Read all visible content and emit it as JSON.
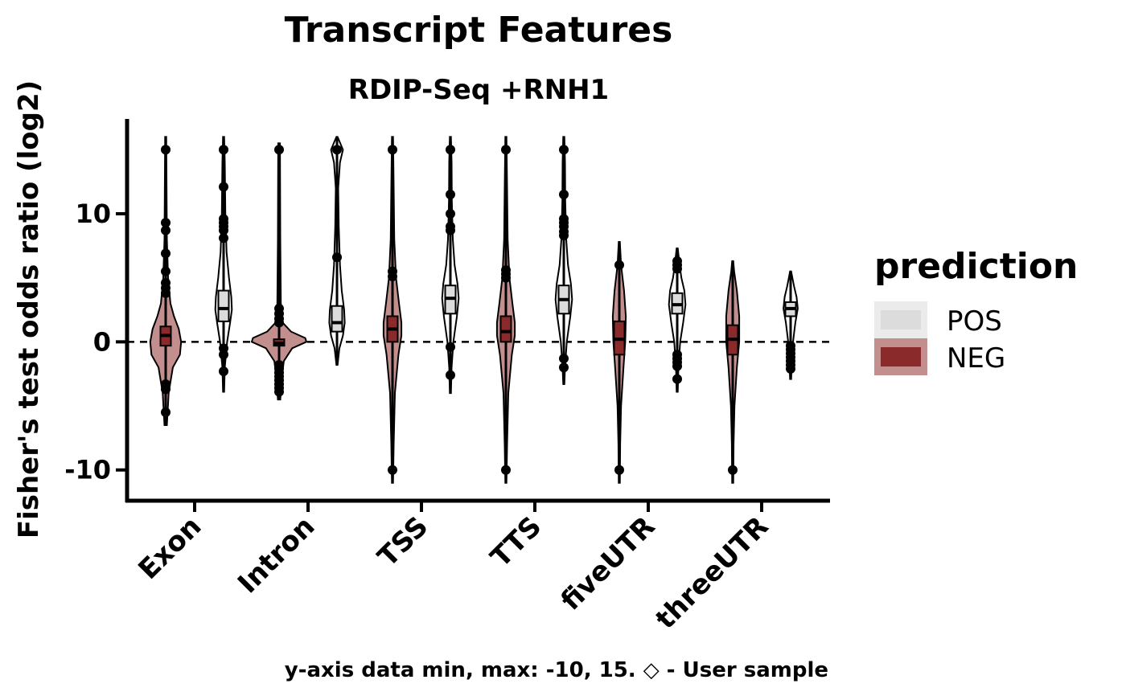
{
  "chart_data": {
    "type": "violin",
    "title": "Transcript Features",
    "subtitle": "RDIP-Seq +RNH1",
    "xlabel": "",
    "ylabel": "Fisher's test odds ratio (log2)",
    "ylim": [
      -12.4,
      17.4
    ],
    "yticks": [
      -10,
      0,
      10
    ],
    "reference_line": 0,
    "caption": "y-axis data min, max: -10, 15. ◇ - User sample",
    "categories": [
      "Exon",
      "Intron",
      "TSS",
      "TTS",
      "fiveUTR",
      "threeUTR"
    ],
    "legend": {
      "title": "prediction",
      "position": "right",
      "entries": [
        {
          "label": "POS",
          "color": "#dcdcdc"
        },
        {
          "label": "NEG",
          "color": "#8b2a2a"
        }
      ]
    },
    "series": [
      {
        "name": "NEG",
        "fill": "#c28e8e",
        "box_fill": "#8b2a2a",
        "groups": [
          {
            "category": "Exon",
            "min": -6.5,
            "max": 16,
            "q1": -0.3,
            "median": 0.5,
            "q3": 1.2,
            "outliers": [
              15,
              9.3,
              8.7,
              6.9,
              5.5,
              4.6,
              4.2,
              3.8,
              -3.3,
              -3.7,
              -5.5
            ],
            "density": [
              [
                -6.5,
                2
              ],
              [
                -4,
                5
              ],
              [
                -2,
                12
              ],
              [
                -1,
                24
              ],
              [
                0,
                26
              ],
              [
                1,
                22
              ],
              [
                2,
                14
              ],
              [
                3,
                8
              ],
              [
                5,
                4
              ],
              [
                8,
                2
              ],
              [
                12,
                1.5
              ],
              [
                16,
                1
              ]
            ]
          },
          {
            "category": "Intron",
            "min": -4.5,
            "max": 15.5,
            "q1": -0.3,
            "median": -0.1,
            "q3": 0.2,
            "outliers": [
              15,
              2.6,
              2.2,
              1.8,
              1.5,
              -1.8,
              -2.1,
              -2.4,
              -2.7,
              -3,
              -3.3,
              -3.6,
              -3.9
            ],
            "density": [
              [
                -4.5,
                2
              ],
              [
                -3,
                4
              ],
              [
                -1.5,
                8
              ],
              [
                -0.5,
                22
              ],
              [
                0,
                46
              ],
              [
                0.3,
                44
              ],
              [
                0.8,
                20
              ],
              [
                1.5,
                6
              ],
              [
                3,
                3
              ],
              [
                8,
                2
              ],
              [
                15.5,
                1.5
              ]
            ]
          },
          {
            "category": "TSS",
            "min": -11,
            "max": 16,
            "q1": 0,
            "median": 1,
            "q3": 2,
            "outliers": [
              15,
              5.5,
              5.1,
              -10
            ],
            "density": [
              [
                -11,
                1
              ],
              [
                -8,
                2
              ],
              [
                -4,
                4
              ],
              [
                -1,
                10
              ],
              [
                0.5,
                15
              ],
              [
                1.5,
                15
              ],
              [
                3,
                11
              ],
              [
                5,
                6
              ],
              [
                8,
                3
              ],
              [
                12,
                2
              ],
              [
                16,
                1
              ]
            ]
          },
          {
            "category": "TTS",
            "min": -11,
            "max": 16,
            "q1": 0,
            "median": 0.8,
            "q3": 2,
            "outliers": [
              15,
              5.6,
              5.3,
              5,
              -10
            ],
            "density": [
              [
                -11,
                1
              ],
              [
                -8,
                2
              ],
              [
                -4,
                4
              ],
              [
                -1,
                10
              ],
              [
                0.5,
                15
              ],
              [
                1.5,
                15
              ],
              [
                3,
                11
              ],
              [
                5,
                6
              ],
              [
                8,
                3
              ],
              [
                12,
                2
              ],
              [
                16,
                1
              ]
            ]
          },
          {
            "category": "fiveUTR",
            "min": -11,
            "max": 7.8,
            "q1": -1,
            "median": 0.2,
            "q3": 1.6,
            "outliers": [
              6,
              -10
            ],
            "density": [
              [
                -11,
                1
              ],
              [
                -8,
                1.5
              ],
              [
                -5,
                3
              ],
              [
                -2,
                7
              ],
              [
                0,
                10
              ],
              [
                2,
                11
              ],
              [
                4,
                8
              ],
              [
                6,
                3
              ],
              [
                7.8,
                1
              ]
            ]
          },
          {
            "category": "threeUTR",
            "min": -11,
            "max": 6.3,
            "q1": -1,
            "median": 0.2,
            "q3": 1.3,
            "outliers": [
              -10
            ],
            "density": [
              [
                -11,
                1
              ],
              [
                -8,
                1.5
              ],
              [
                -5,
                3
              ],
              [
                -2,
                7
              ],
              [
                0,
                11
              ],
              [
                2,
                11
              ],
              [
                4,
                7
              ],
              [
                5.5,
                2.5
              ],
              [
                6.3,
                1
              ]
            ]
          }
        ]
      },
      {
        "name": "POS",
        "fill": "#ffffff",
        "box_fill": "#dcdcdc",
        "groups": [
          {
            "category": "Exon",
            "min": -3.9,
            "max": 16,
            "q1": 1.6,
            "median": 2.6,
            "q3": 4,
            "outliers": [
              15,
              12.1,
              9.6,
              9.3,
              9,
              8.7,
              8.1,
              -0.5,
              -1,
              -2.3
            ],
            "density": [
              [
                -3.9,
                1
              ],
              [
                -2,
                2
              ],
              [
                0,
                6
              ],
              [
                1.5,
                11
              ],
              [
                2.5,
                14
              ],
              [
                3.5,
                13
              ],
              [
                5,
                9
              ],
              [
                7,
                5
              ],
              [
                10,
                3
              ],
              [
                14,
                2
              ],
              [
                16,
                1
              ]
            ]
          },
          {
            "category": "Intron",
            "min": -1.8,
            "max": 16,
            "q1": 0.8,
            "median": 1.5,
            "q3": 2.8,
            "outliers": [
              15,
              6.6
            ],
            "density": [
              [
                -1.8,
                1
              ],
              [
                -0.5,
                4
              ],
              [
                0.5,
                10
              ],
              [
                1.5,
                13
              ],
              [
                2.5,
                12
              ],
              [
                4,
                8
              ],
              [
                6,
                5
              ],
              [
                9,
                3
              ],
              [
                12,
                2
              ],
              [
                14,
                5
              ],
              [
                15,
                10
              ],
              [
                16,
                1
              ]
            ]
          },
          {
            "category": "TSS",
            "min": -4,
            "max": 16,
            "q1": 2.2,
            "median": 3.4,
            "q3": 4.4,
            "outliers": [
              15,
              11.5,
              10,
              9,
              8.7,
              -0.4,
              -2.6
            ],
            "density": [
              [
                -4,
                1
              ],
              [
                -2,
                2
              ],
              [
                0,
                5
              ],
              [
                2,
                11
              ],
              [
                3.4,
                14
              ],
              [
                4.5,
                12
              ],
              [
                6,
                7
              ],
              [
                8,
                4
              ],
              [
                11,
                2.5
              ],
              [
                14,
                2
              ],
              [
                16,
                1
              ]
            ]
          },
          {
            "category": "TTS",
            "min": -3.3,
            "max": 16,
            "q1": 2.2,
            "median": 3.3,
            "q3": 4.4,
            "outliers": [
              15,
              11.5,
              9.6,
              9.3,
              9,
              8.6,
              8.3,
              -1.3,
              -2
            ],
            "density": [
              [
                -3.3,
                1
              ],
              [
                -2,
                2
              ],
              [
                0,
                5
              ],
              [
                2,
                11
              ],
              [
                3.3,
                14
              ],
              [
                4.5,
                12
              ],
              [
                6,
                7
              ],
              [
                8,
                4
              ],
              [
                11,
                2.5
              ],
              [
                14,
                2
              ],
              [
                16,
                1
              ]
            ]
          },
          {
            "category": "fiveUTR",
            "min": -3.9,
            "max": 7.3,
            "q1": 2.2,
            "median": 2.9,
            "q3": 3.8,
            "outliers": [
              6.3,
              6,
              5.7,
              -1,
              -1.3,
              -1.6,
              -1.9,
              -2.9
            ],
            "density": [
              [
                -3.9,
                1
              ],
              [
                -2,
                2
              ],
              [
                0,
                5
              ],
              [
                1.5,
                10
              ],
              [
                2.9,
                14
              ],
              [
                4,
                12
              ],
              [
                5,
                7
              ],
              [
                6,
                4
              ],
              [
                7.3,
                1
              ]
            ]
          },
          {
            "category": "threeUTR",
            "min": -2.9,
            "max": 5.5,
            "q1": 2,
            "median": 2.6,
            "q3": 3.1,
            "outliers": [
              -0.3,
              -0.6,
              -0.9,
              -1.2,
              -1.5,
              -1.8,
              -2.1
            ],
            "density": [
              [
                -2.9,
                1
              ],
              [
                -1.5,
                2
              ],
              [
                0,
                4
              ],
              [
                1.5,
                8
              ],
              [
                2.6,
                12
              ],
              [
                3.5,
                10
              ],
              [
                4.3,
                6
              ],
              [
                5,
                3
              ],
              [
                5.5,
                1
              ]
            ]
          }
        ]
      }
    ]
  }
}
